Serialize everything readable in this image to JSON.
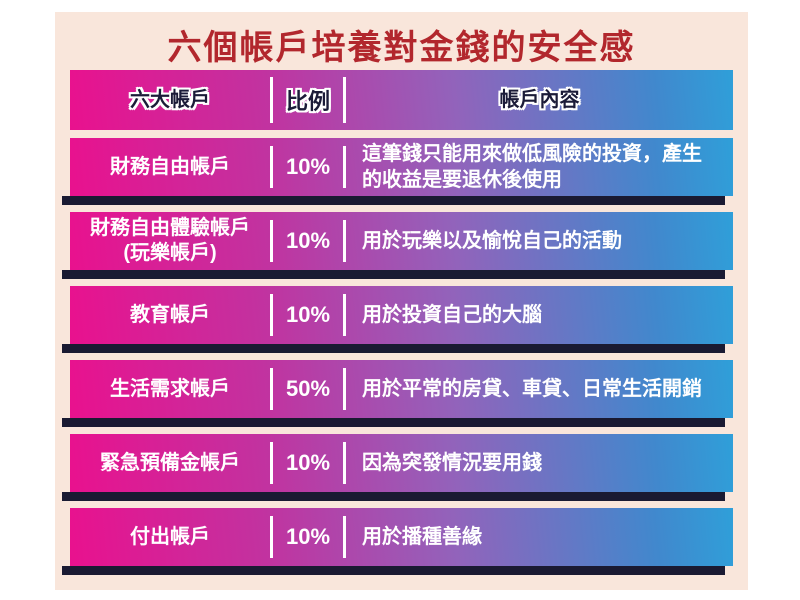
{
  "title": {
    "text": "六個帳戶培養對金錢的安全感",
    "color": "#b2272d"
  },
  "table": {
    "header": {
      "account": "六大帳戶",
      "ratio": "比例",
      "content": "帳戶內容"
    },
    "rows": [
      {
        "account": "財務自由帳戶",
        "account_line2": "",
        "ratio": "10%",
        "content": "這筆錢只能用來做低風險的投資，產生的收益是要退休後使用"
      },
      {
        "account": "財務自由體驗帳戶",
        "account_line2": "(玩樂帳戶)",
        "ratio": "10%",
        "content": "用於玩樂以及愉悅自己的活動"
      },
      {
        "account": "教育帳戶",
        "account_line2": "",
        "ratio": "10%",
        "content": "用於投資自己的大腦"
      },
      {
        "account": "生活需求帳戶",
        "account_line2": "",
        "ratio": "50%",
        "content": "用於平常的房貸、車貸、日常生活開銷"
      },
      {
        "account": "緊急預備金帳戶",
        "account_line2": "",
        "ratio": "10%",
        "content": "因為突發情況要用錢"
      },
      {
        "account": "付出帳戶",
        "account_line2": "",
        "ratio": "10%",
        "content": "用於播種善緣"
      }
    ]
  },
  "colors": {
    "panel_background": "#f9e6db",
    "row_gradient_left": "#e9118e",
    "row_gradient_middle": "#9263bb",
    "row_gradient_right": "#2f9fd9",
    "shadow_bar": "#1a1a32",
    "header_text": "#1b1b38",
    "row_text": "#ffffff",
    "divider": "#ffffff",
    "title_text": "#b2272d"
  },
  "chart_data": {
    "type": "table",
    "title": "六個帳戶培養對金錢的安全感",
    "columns": [
      "六大帳戶",
      "比例",
      "帳戶內容"
    ],
    "categories": [
      "財務自由帳戶",
      "財務自由體驗帳戶(玩樂帳戶)",
      "教育帳戶",
      "生活需求帳戶",
      "緊急預備金帳戶",
      "付出帳戶"
    ],
    "values": [
      10,
      10,
      10,
      50,
      10,
      10
    ],
    "unit": "%",
    "descriptions": [
      "這筆錢只能用來做低風險的投資，產生的收益是要退休後使用",
      "用於玩樂以及愉悅自己的活動",
      "用於投資自己的大腦",
      "用於平常的房貸、車貸、日常生活開銷",
      "因為突發情況要用錢",
      "用於播種善緣"
    ]
  }
}
